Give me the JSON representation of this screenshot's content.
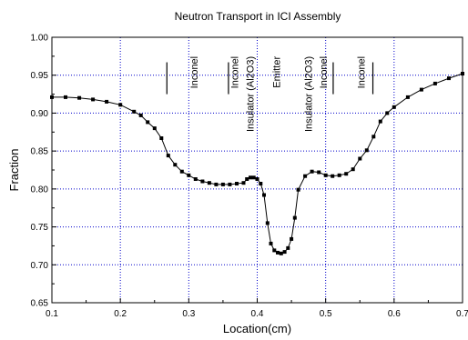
{
  "chart_data": {
    "type": "line",
    "title": "Neutron Transport in ICI Assembly",
    "xlabel": "Location(cm)",
    "ylabel": "Fraction",
    "xlim": [
      0.1,
      0.7
    ],
    "ylim": [
      0.65,
      1.0
    ],
    "x_ticks": [
      0.1,
      0.2,
      0.3,
      0.4,
      0.5,
      0.6,
      0.7
    ],
    "x_tick_labels": [
      "0.1",
      "0.2",
      "0.3",
      "0.4",
      "0.5",
      "0.6",
      "0.7"
    ],
    "y_ticks": [
      0.65,
      0.7,
      0.75,
      0.8,
      0.85,
      0.9,
      0.95,
      1.0
    ],
    "y_tick_labels": [
      "0.65",
      "0.70",
      "0.75",
      "0.80",
      "0.85",
      "0.90",
      "0.95",
      "1.00"
    ],
    "grid": true,
    "colors": {
      "grid": "#0000cc",
      "line": "#000000",
      "marker": "#000000",
      "axis": "#000000"
    },
    "series": [
      {
        "marker": "square",
        "x": [
          0.1,
          0.12,
          0.14,
          0.16,
          0.18,
          0.2,
          0.22,
          0.23,
          0.24,
          0.25,
          0.26,
          0.27,
          0.28,
          0.29,
          0.3,
          0.31,
          0.32,
          0.33,
          0.34,
          0.35,
          0.36,
          0.37,
          0.38,
          0.385,
          0.39,
          0.395,
          0.4,
          0.405,
          0.41,
          0.415,
          0.42,
          0.425,
          0.43,
          0.435,
          0.44,
          0.445,
          0.45,
          0.455,
          0.46,
          0.47,
          0.48,
          0.49,
          0.5,
          0.51,
          0.52,
          0.53,
          0.54,
          0.55,
          0.56,
          0.57,
          0.58,
          0.59,
          0.6,
          0.62,
          0.64,
          0.66,
          0.68,
          0.7
        ],
        "y": [
          0.921,
          0.921,
          0.92,
          0.918,
          0.915,
          0.911,
          0.902,
          0.897,
          0.888,
          0.88,
          0.867,
          0.844,
          0.832,
          0.823,
          0.818,
          0.813,
          0.81,
          0.808,
          0.806,
          0.806,
          0.806,
          0.807,
          0.808,
          0.813,
          0.815,
          0.815,
          0.813,
          0.807,
          0.792,
          0.755,
          0.728,
          0.719,
          0.716,
          0.715,
          0.717,
          0.722,
          0.734,
          0.762,
          0.799,
          0.817,
          0.823,
          0.822,
          0.818,
          0.817,
          0.818,
          0.82,
          0.826,
          0.84,
          0.851,
          0.869,
          0.889,
          0.9,
          0.908,
          0.921,
          0.931,
          0.939,
          0.946,
          0.952
        ]
      }
    ],
    "annotations": {
      "region_labels": [
        {
          "text": "Inconel",
          "x": 0.313,
          "y_top": 0.975
        },
        {
          "text": "Inconel",
          "x": 0.372,
          "y_top": 0.975
        },
        {
          "text": "Insulator (Al2O3)",
          "x": 0.395,
          "y_top": 0.975
        },
        {
          "text": "Emitter",
          "x": 0.433,
          "y_top": 0.975
        },
        {
          "text": "Insulator (Al2O3)",
          "x": 0.48,
          "y_top": 0.975
        },
        {
          "text": "Inconel",
          "x": 0.502,
          "y_top": 0.975
        },
        {
          "text": "Inconel",
          "x": 0.557,
          "y_top": 0.975
        }
      ],
      "boundary_lines": [
        {
          "x": 0.268,
          "y1": 0.967,
          "y2": 0.925
        },
        {
          "x": 0.358,
          "y1": 0.967,
          "y2": 0.925
        },
        {
          "x": 0.511,
          "y1": 0.967,
          "y2": 0.925
        },
        {
          "x": 0.569,
          "y1": 0.967,
          "y2": 0.925
        }
      ]
    }
  }
}
